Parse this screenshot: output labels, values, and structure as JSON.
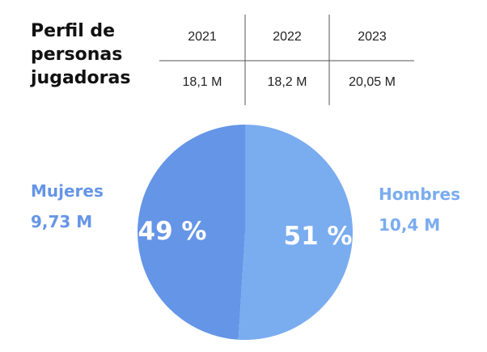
{
  "title_lines": [
    "Perfil de",
    "personas",
    "jugadoras"
  ],
  "table": {
    "years": [
      "2021",
      "2022",
      "2023"
    ],
    "players": [
      "18,1 M",
      "18,2 M",
      "20,05 M"
    ]
  },
  "colors": {
    "mujeres": "#6595e6",
    "hombres": "#7aacf0",
    "title": "#111111",
    "lines": "#555555"
  },
  "chart_data": {
    "type": "pie",
    "categories": [
      "Mujeres",
      "Hombres"
    ],
    "values": [
      49,
      51
    ],
    "value_labels": [
      "49 %",
      "51 %"
    ],
    "counts": [
      "9,73 M",
      "10,4 M"
    ],
    "title": "Perfil de personas jugadoras"
  }
}
